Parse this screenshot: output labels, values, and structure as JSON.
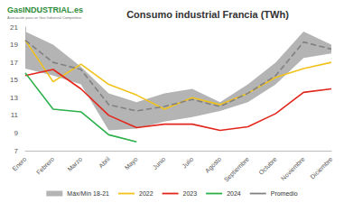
{
  "chart_data": {
    "type": "line",
    "title": "Consumo industrial Francia (TWh)",
    "annotations": [
      "GasINDUSTRIAL.es",
      "Asociación para un Gas Industrial Competitivo"
    ],
    "categories": [
      "Enero",
      "Febrero",
      "Marzo",
      "Abril",
      "Mayo",
      "Junio",
      "Julio",
      "Agosto",
      "Septiembre",
      "Octubre",
      "Noviembre",
      "Diciembre"
    ],
    "series": [
      {
        "name": "Máx/Mín 18-21",
        "type": "band",
        "color": "#b4b4b4",
        "max": [
          20.5,
          19.0,
          16.5,
          13.5,
          12.5,
          13.5,
          14.0,
          12.5,
          14.5,
          17.0,
          20.5,
          19.0
        ],
        "min": [
          16.3,
          15.5,
          14.5,
          9.3,
          9.5,
          10.3,
          10.8,
          11.5,
          12.5,
          14.5,
          17.5,
          18.0
        ]
      },
      {
        "name": "2022",
        "type": "line",
        "color": "#f2c21b",
        "line_style": "solid",
        "values": [
          19.5,
          14.8,
          16.8,
          14.5,
          13.3,
          11.7,
          13.0,
          12.2,
          13.5,
          15.3,
          16.3,
          17.0
        ]
      },
      {
        "name": "2023",
        "type": "line",
        "color": "#e3261c",
        "line_style": "solid",
        "values": [
          15.5,
          16.2,
          14.0,
          11.0,
          9.6,
          10.0,
          10.0,
          9.3,
          9.7,
          11.2,
          13.6,
          14.0
        ]
      },
      {
        "name": "2024",
        "type": "line",
        "color": "#2bb04a",
        "line_style": "solid",
        "values": [
          15.8,
          11.7,
          11.4,
          8.8,
          8.0,
          null,
          null,
          null,
          null,
          null,
          null,
          null
        ]
      },
      {
        "name": "Promedio",
        "type": "line",
        "color": "#808080",
        "line_style": "dashed",
        "values": [
          19.5,
          17.0,
          16.2,
          12.2,
          11.5,
          12.0,
          12.8,
          12.0,
          13.5,
          15.5,
          19.3,
          18.5
        ]
      }
    ],
    "ylim": [
      7,
      21
    ],
    "yticks": [
      7,
      9,
      11,
      13,
      15,
      17,
      19,
      21
    ],
    "grid": false,
    "legend": "bottom",
    "marker": "none"
  }
}
